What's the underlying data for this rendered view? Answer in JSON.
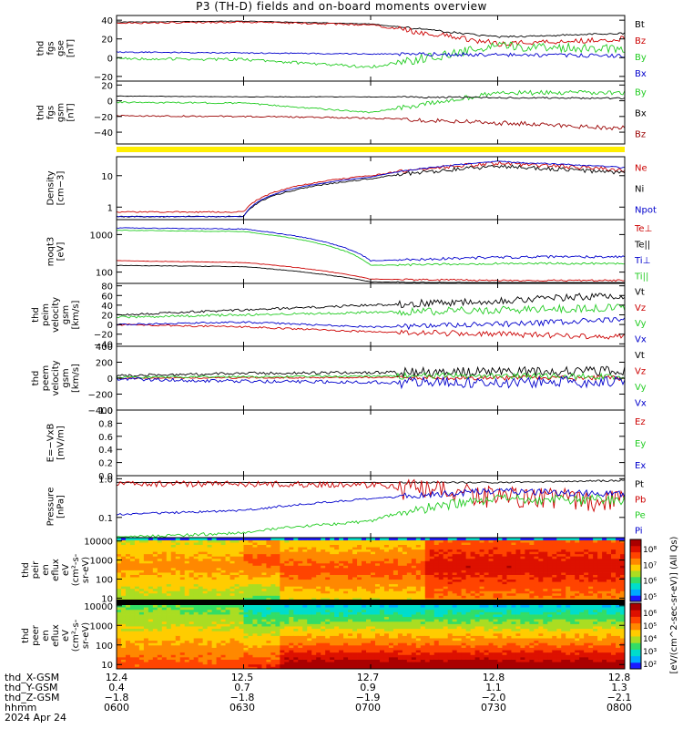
{
  "page": {
    "title": "P3 (TH-D) fields and on-board moments overview"
  },
  "panels": [
    {
      "id": "fgs_gse",
      "ylabel": [
        "thd",
        "fgs",
        "gse",
        "[nT]"
      ],
      "ticks": [
        {
          "v": 40,
          "t": "40"
        },
        {
          "v": 20,
          "t": "20"
        },
        {
          "v": 0,
          "t": "0"
        },
        {
          "v": -20,
          "t": "−20"
        }
      ],
      "legend": [
        {
          "t": "Bt",
          "c": "#000000"
        },
        {
          "t": "Bz",
          "c": "#cc0000"
        },
        {
          "t": "By",
          "c": "#22cc22"
        },
        {
          "t": "Bx",
          "c": "#0000cc"
        }
      ]
    },
    {
      "id": "fgs_gsm",
      "ylabel": [
        "thd",
        "fgs",
        "gsm",
        "[nT]"
      ],
      "ticks": [
        {
          "v": 20,
          "t": "20"
        },
        {
          "v": 0,
          "t": "0"
        },
        {
          "v": -20,
          "t": "−20"
        },
        {
          "v": -40,
          "t": "−40"
        }
      ],
      "legend": [
        {
          "t": "By",
          "c": "#22cc22"
        },
        {
          "t": "Bx",
          "c": "#000000"
        },
        {
          "t": "Bz",
          "c": "#990000"
        }
      ]
    },
    {
      "id": "density",
      "ylabel": [
        "Density",
        "[cm−3]"
      ],
      "ticks": [
        {
          "v": 10,
          "t": "10"
        },
        {
          "v": 1,
          "t": "1"
        }
      ],
      "legend": [
        {
          "t": "Ne",
          "c": "#cc0000"
        },
        {
          "t": "Ni",
          "c": "#000000"
        },
        {
          "t": "Npot",
          "c": "#0000cc"
        }
      ]
    },
    {
      "id": "temp",
      "ylabel": [
        "moqt3",
        "[eV]"
      ],
      "ticks": [
        {
          "v": 1000,
          "t": "1000"
        },
        {
          "v": 100,
          "t": "100"
        }
      ],
      "legend": [
        {
          "t": "Te⊥",
          "c": "#cc0000"
        },
        {
          "t": "Te||",
          "c": "#000000"
        },
        {
          "t": "Ti⊥",
          "c": "#0000cc"
        },
        {
          "t": "Ti||",
          "c": "#22cc22"
        }
      ]
    },
    {
      "id": "peim_vel",
      "ylabel": [
        "thd",
        "peim",
        "velocity",
        "gsm",
        "[km/s]"
      ],
      "ticks": [
        {
          "v": 80,
          "t": "80"
        },
        {
          "v": 60,
          "t": "60"
        },
        {
          "v": 40,
          "t": "40"
        },
        {
          "v": 20,
          "t": "20"
        },
        {
          "v": 0,
          "t": "0"
        },
        {
          "v": -20,
          "t": "−20"
        },
        {
          "v": -40,
          "t": "−40"
        }
      ],
      "legend": [
        {
          "t": "Vt",
          "c": "#000000"
        },
        {
          "t": "Vz",
          "c": "#cc0000"
        },
        {
          "t": "Vy",
          "c": "#22cc22"
        },
        {
          "t": "Vx",
          "c": "#0000cc"
        }
      ]
    },
    {
      "id": "peem_vel",
      "ylabel": [
        "thd",
        "peem",
        "velocity",
        "gsm",
        "[km/s]"
      ],
      "ticks": [
        {
          "v": 400,
          "t": "400"
        },
        {
          "v": 200,
          "t": "200"
        },
        {
          "v": 0,
          "t": "0"
        },
        {
          "v": -200,
          "t": "−200"
        },
        {
          "v": -400,
          "t": "−400"
        }
      ],
      "legend": [
        {
          "t": "Vt",
          "c": "#000000"
        },
        {
          "t": "Vz",
          "c": "#cc0000"
        },
        {
          "t": "Vy",
          "c": "#22cc22"
        },
        {
          "t": "Vx",
          "c": "#0000cc"
        }
      ]
    },
    {
      "id": "efield",
      "ylabel": [
        "E=−VxB",
        "[mV/m]"
      ],
      "ticks": [
        {
          "v": 1.0,
          "t": "1.0"
        },
        {
          "v": 0.8,
          "t": "0.8"
        },
        {
          "v": 0.6,
          "t": "0.6"
        },
        {
          "v": 0.4,
          "t": "0.4"
        },
        {
          "v": 0.2,
          "t": "0.2"
        },
        {
          "v": 0.0,
          "t": "0.0"
        }
      ],
      "legend": [
        {
          "t": "Ez",
          "c": "#cc0000"
        },
        {
          "t": "Ey",
          "c": "#22cc22"
        },
        {
          "t": "Ex",
          "c": "#0000cc"
        }
      ]
    },
    {
      "id": "pressure",
      "ylabel": [
        "Pressure",
        "[nPa]"
      ],
      "ticks": [
        {
          "v": 1.0,
          "t": "1.0"
        },
        {
          "v": 0.1,
          "t": "0.1"
        }
      ],
      "legend": [
        {
          "t": "Pt",
          "c": "#000000"
        },
        {
          "t": "Pb",
          "c": "#cc0000"
        },
        {
          "t": "Pe",
          "c": "#22cc22"
        },
        {
          "t": "Pi",
          "c": "#0000cc"
        }
      ]
    },
    {
      "id": "peir_spec",
      "ylabel": [
        "thd",
        "peir",
        "en",
        "eflux",
        "eV",
        "(cm²-s-",
        "sr-eV)"
      ],
      "ticks": [
        {
          "v": 10000,
          "t": "10000"
        },
        {
          "v": 1000,
          "t": "1000"
        },
        {
          "v": 100,
          "t": "100"
        },
        {
          "v": 10,
          "t": "10"
        }
      ],
      "legend": []
    },
    {
      "id": "peer_spec",
      "ylabel": [
        "thd",
        "peer",
        "en",
        "eflux",
        "eV",
        "(cm²-s-",
        "sr-eV)"
      ],
      "ticks": [
        {
          "v": 10000,
          "t": "10000"
        },
        {
          "v": 1000,
          "t": "1000"
        },
        {
          "v": 100,
          "t": "100"
        },
        {
          "v": 10,
          "t": "10"
        }
      ],
      "legend": []
    }
  ],
  "colorbar": {
    "ticks_upper": [
      "10⁸",
      "10⁷",
      "10⁶",
      "10⁵"
    ],
    "ticks_lower": [
      "10⁶",
      "10⁵",
      "10⁴",
      "10³",
      "10²"
    ],
    "label": "[eV/(cm^2-sec-sr-eV)] (All Qs)"
  },
  "xaxis": {
    "rows": [
      "thd_X-GSM",
      "thd_Y-GSM",
      "thd_Z-GSM",
      "hhmm",
      "2024 Apr 24"
    ],
    "cols": [
      {
        "x": "12.4",
        "y": "0.4",
        "z": "−1.8",
        "t": "0600"
      },
      {
        "x": "12.5",
        "y": "0.7",
        "z": "−1.8",
        "t": "0630"
      },
      {
        "x": "12.7",
        "y": "0.9",
        "z": "−1.9",
        "t": "0700"
      },
      {
        "x": "12.8",
        "y": "1.1",
        "z": "−2.0",
        "t": "0730"
      },
      {
        "x": "12.8",
        "y": "1.3",
        "z": "−2.1",
        "t": "0800"
      }
    ]
  },
  "chart_data": {
    "type": "line",
    "title": "P3 (TH-D) fields and on-board moments overview",
    "x": [
      "0600",
      "0630",
      "0700",
      "0730",
      "0800"
    ],
    "xlabel": "hhmm",
    "series_panels": [
      {
        "panel": "fgs_gse",
        "ylim": [
          -25,
          45
        ],
        "series": [
          {
            "name": "Bt",
            "values": [
              38,
              39,
              36,
              22,
              26
            ]
          },
          {
            "name": "Bz",
            "values": [
              37,
              38,
              35,
              15,
              20
            ]
          },
          {
            "name": "By",
            "values": [
              -1,
              -2,
              -10,
              12,
              10
            ]
          },
          {
            "name": "Bx",
            "values": [
              6,
              5,
              4,
              3,
              2
            ]
          }
        ]
      },
      {
        "panel": "fgs_gsm",
        "ylim": [
          -55,
          25
        ],
        "series": [
          {
            "name": "By",
            "values": [
              -2,
              -3,
              -15,
              10,
              10
            ]
          },
          {
            "name": "Bx",
            "values": [
              6,
              5,
              5,
              4,
              3
            ]
          },
          {
            "name": "Bz",
            "values": [
              -19,
              -20,
              -22,
              -28,
              -35
            ]
          }
        ]
      },
      {
        "panel": "density",
        "log": true,
        "ylim": [
          0.4,
          40
        ],
        "series": [
          {
            "name": "Ne",
            "values": [
              0.7,
              0.7,
              10,
              25,
              15
            ]
          },
          {
            "name": "Ni",
            "values": [
              0.5,
              0.5,
              8,
              20,
              12
            ]
          },
          {
            "name": "Npot",
            "values": [
              0.5,
              0.5,
              9,
              28,
              18
            ]
          }
        ]
      },
      {
        "panel": "temp",
        "log": true,
        "ylim": [
          50,
          2500
        ],
        "series": [
          {
            "name": "Te⊥",
            "values": [
              200,
              180,
              65,
              60,
              60
            ]
          },
          {
            "name": "Te||",
            "values": [
              150,
              140,
              55,
              50,
              50
            ]
          },
          {
            "name": "Ti⊥",
            "values": [
              1500,
              1400,
              200,
              250,
              260
            ]
          },
          {
            "name": "Ti||",
            "values": [
              1300,
              1200,
              150,
              170,
              170
            ]
          }
        ]
      },
      {
        "panel": "peim_vel",
        "ylim": [
          -45,
          85
        ],
        "series": [
          {
            "name": "Vt",
            "values": [
              20,
              30,
              40,
              50,
              60
            ]
          },
          {
            "name": "Vz",
            "values": [
              0,
              -5,
              -15,
              -20,
              -25
            ]
          },
          {
            "name": "Vy",
            "values": [
              15,
              20,
              25,
              30,
              35
            ]
          },
          {
            "name": "Vx",
            "values": [
              0,
              5,
              -5,
              0,
              10
            ]
          }
        ]
      },
      {
        "panel": "peem_vel",
        "ylim": [
          -400,
          400
        ],
        "series": [
          {
            "name": "Vt",
            "values": [
              30,
              60,
              70,
              80,
              90
            ]
          },
          {
            "name": "Vz",
            "values": [
              0,
              5,
              10,
              5,
              0
            ]
          },
          {
            "name": "Vy",
            "values": [
              10,
              20,
              25,
              30,
              20
            ]
          },
          {
            "name": "Vx",
            "values": [
              -10,
              -40,
              -50,
              -60,
              -40
            ]
          }
        ]
      },
      {
        "panel": "efield",
        "ylim": [
          0,
          1
        ],
        "series": []
      },
      {
        "panel": "pressure",
        "log": true,
        "ylim": [
          0.03,
          1.2
        ],
        "series": [
          {
            "name": "Pt",
            "values": [
              0.8,
              0.8,
              0.8,
              0.8,
              0.9
            ]
          },
          {
            "name": "Pb",
            "values": [
              0.75,
              0.75,
              0.7,
              0.4,
              0.3
            ]
          },
          {
            "name": "Pe",
            "values": [
              0.03,
              0.04,
              0.08,
              0.3,
              0.3
            ]
          },
          {
            "name": "Pi",
            "values": [
              0.12,
              0.15,
              0.3,
              0.5,
              0.4
            ]
          }
        ]
      }
    ]
  }
}
